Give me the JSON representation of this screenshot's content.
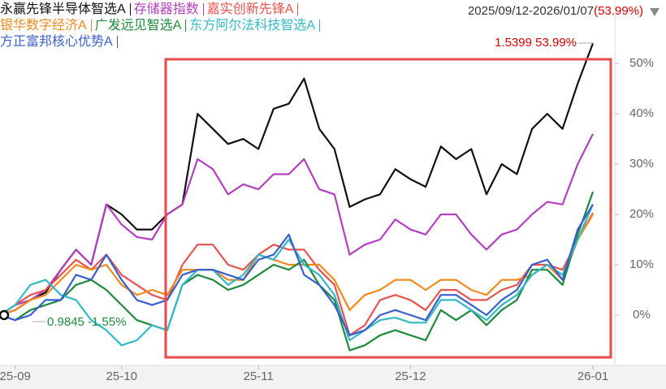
{
  "chart_data": {
    "type": "line",
    "range": "2025/09/12-2026/01/07",
    "range_change": "(53.99%)",
    "annotations": [
      "1.5399 53.99%",
      "0.9845 -1.55%"
    ],
    "categories": [
      null,
      "25-09",
      null,
      null,
      null,
      null,
      null,
      null,
      "25-10",
      null,
      null,
      null,
      null,
      null,
      null,
      null,
      null,
      "25-11",
      null,
      null,
      null,
      null,
      null,
      null,
      null,
      null,
      null,
      "25-12",
      null,
      null,
      null,
      null,
      null,
      null,
      null,
      null,
      null,
      null,
      null,
      "26-01"
    ],
    "ylim": [
      -10,
      62.6
    ],
    "yticks": [
      {
        "value": 0,
        "label": "0%"
      },
      {
        "value": 10,
        "label": "10%"
      },
      {
        "value": 20,
        "label": "20%"
      },
      {
        "value": 30,
        "label": "30%"
      },
      {
        "value": 40,
        "label": "40%"
      },
      {
        "value": 50,
        "label": "50%"
      }
    ],
    "series": [
      {
        "name": "永赢先锋半导体智选A",
        "color": "#111111",
        "values": [
          0,
          1,
          3,
          4.5,
          9,
          13,
          10,
          22,
          20,
          17,
          17,
          20,
          22,
          40,
          37,
          34,
          35,
          33,
          41,
          42,
          47,
          37,
          33,
          21.5,
          23,
          24,
          29,
          27,
          25.5,
          33.5,
          31,
          33,
          24,
          30,
          28,
          37,
          40,
          37,
          46,
          53.99
        ]
      },
      {
        "name": "存储器指数",
        "color": "#b43fc0",
        "values": [
          0,
          2,
          3,
          5,
          9,
          13,
          10,
          22,
          18,
          15.5,
          15,
          20,
          22,
          31,
          29,
          24,
          26,
          25,
          28,
          28,
          31,
          25,
          24,
          12,
          14,
          15,
          19,
          17,
          16,
          20,
          20,
          16,
          13,
          16,
          17,
          20,
          22.5,
          22,
          30,
          36
        ]
      },
      {
        "name": "嘉实创新先锋A",
        "color": "#e8534f",
        "values": [
          0,
          2,
          4,
          5,
          8,
          11,
          9,
          12,
          8,
          6,
          4,
          3,
          10,
          14,
          14,
          10,
          9,
          12,
          14,
          13,
          13,
          9,
          6,
          -4,
          -2,
          3,
          4,
          3,
          1,
          5,
          5,
          3,
          3,
          5,
          6,
          10,
          10,
          9,
          15,
          20.3
        ]
      },
      {
        "name": "银华数字经济A",
        "color": "#f08a1c",
        "values": [
          0,
          1,
          3,
          4,
          7,
          10,
          9,
          10,
          6,
          4,
          5,
          4,
          9,
          9,
          9,
          7,
          7,
          12,
          11,
          10,
          10,
          10,
          7,
          1,
          4,
          5,
          7,
          7,
          5,
          7,
          7,
          5,
          4,
          7,
          7,
          8,
          10,
          7,
          15,
          20
        ]
      },
      {
        "name": "广发远见智选A",
        "color": "#1e8b3a",
        "values": [
          0,
          -1,
          1,
          2,
          3,
          6,
          7,
          5,
          2,
          -1,
          -2,
          -3,
          6,
          8,
          7,
          5,
          6,
          8,
          10,
          9,
          11,
          6,
          3,
          -7,
          -6,
          -4,
          -3,
          -4,
          -5,
          1,
          -1,
          1,
          -2,
          1,
          3,
          9,
          9,
          6,
          16,
          24.5
        ]
      },
      {
        "name": "东方阿尔法科技智选A",
        "color": "#33b8c8",
        "values": [
          0,
          2,
          6,
          7,
          4,
          3,
          -1,
          -3,
          -6,
          -5,
          -2,
          -3,
          6,
          9,
          9,
          6,
          8,
          12,
          11,
          15,
          10,
          8,
          4,
          -5,
          -3,
          -1,
          -0.5,
          -1.5,
          -1.5,
          3,
          3,
          1,
          -1,
          2,
          4,
          8,
          10,
          8,
          15,
          22
        ]
      },
      {
        "name": "方正富邦核心优势A",
        "color": "#3a5fcd",
        "values": [
          0,
          -1,
          0,
          3,
          3,
          8,
          7,
          12,
          7,
          3,
          2,
          3,
          8,
          9,
          9,
          8,
          7,
          11,
          12,
          16,
          8,
          6,
          2,
          -4,
          -3,
          0,
          1,
          0,
          -1,
          4,
          4,
          2,
          0,
          3,
          5,
          10,
          11,
          7,
          17,
          22
        ]
      }
    ]
  }
}
